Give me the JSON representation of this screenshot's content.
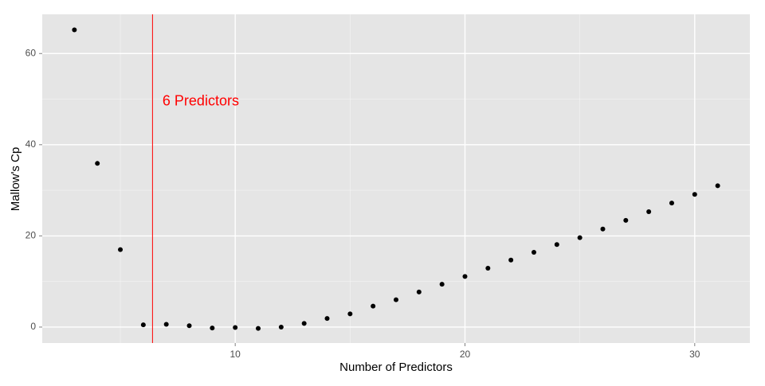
{
  "chart_data": {
    "type": "scatter",
    "title": "",
    "xlabel": "Number of Predictors",
    "ylabel": "Mallow's Cp",
    "xlim": [
      1.6,
      32.4
    ],
    "ylim": [
      -3.5,
      68.6
    ],
    "xticks": [
      10,
      20,
      30
    ],
    "yticks": [
      0,
      20,
      40,
      60
    ],
    "x_minor": [
      5,
      15,
      25
    ],
    "y_minor": [
      10,
      30,
      50
    ],
    "grid": true,
    "panel_color": "#E5E5E5",
    "grid_color": "#FFFFFF",
    "point_color": "#000000",
    "series": [
      {
        "x": [
          3,
          4,
          5,
          6,
          7,
          8,
          9,
          10,
          11,
          12,
          13,
          14,
          15,
          16,
          17,
          18,
          19,
          20,
          21,
          22,
          23,
          24,
          25,
          26,
          27,
          28,
          29,
          30,
          31
        ],
        "y": [
          65.2,
          35.9,
          17.0,
          0.5,
          0.6,
          0.3,
          -0.2,
          -0.1,
          -0.3,
          0.0,
          0.8,
          1.9,
          2.9,
          4.6,
          6.0,
          7.7,
          9.4,
          11.1,
          12.9,
          14.7,
          16.4,
          18.1,
          19.6,
          21.5,
          23.4,
          25.3,
          27.2,
          29.1,
          31.0
        ]
      }
    ],
    "vline": {
      "x": 6.4,
      "color": "#FF0000"
    },
    "annotation": {
      "text": "6 Predictors",
      "x": 8.5,
      "y": 49.4,
      "color": "#FF0000"
    }
  }
}
